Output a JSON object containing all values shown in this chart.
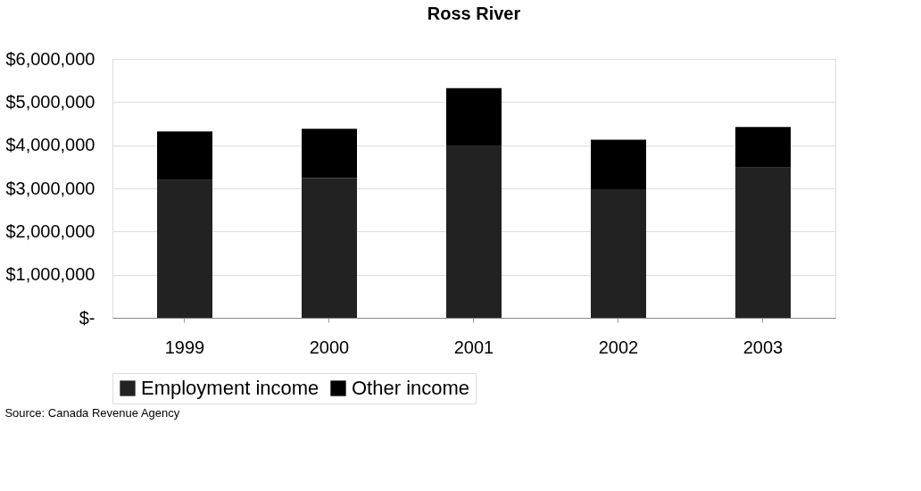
{
  "chart_data": {
    "type": "bar",
    "title": "Ross River",
    "categories": [
      "1999",
      "2000",
      "2001",
      "2002",
      "2003"
    ],
    "series": [
      {
        "name": "Employment income",
        "color": "#222222",
        "values": [
          3190000,
          3240000,
          3980000,
          2980000,
          3480000
        ]
      },
      {
        "name": "Other income",
        "color": "#000000",
        "values": [
          1130000,
          1140000,
          1340000,
          1150000,
          940000
        ]
      }
    ],
    "stacked": true,
    "ylim": [
      0,
      6000000
    ],
    "yticks": [
      {
        "value": 0,
        "label": "$-"
      },
      {
        "value": 1000000,
        "label": "$1,000,000"
      },
      {
        "value": 2000000,
        "label": "$2,000,000"
      },
      {
        "value": 3000000,
        "label": "$3,000,000"
      },
      {
        "value": 4000000,
        "label": "$4,000,000"
      },
      {
        "value": 5000000,
        "label": "$5,000,000"
      },
      {
        "value": 6000000,
        "label": "$6,000,000"
      }
    ],
    "grid": "y",
    "legend": "bottom",
    "annotations": [
      "Source: Canada Revenue Agency"
    ]
  }
}
